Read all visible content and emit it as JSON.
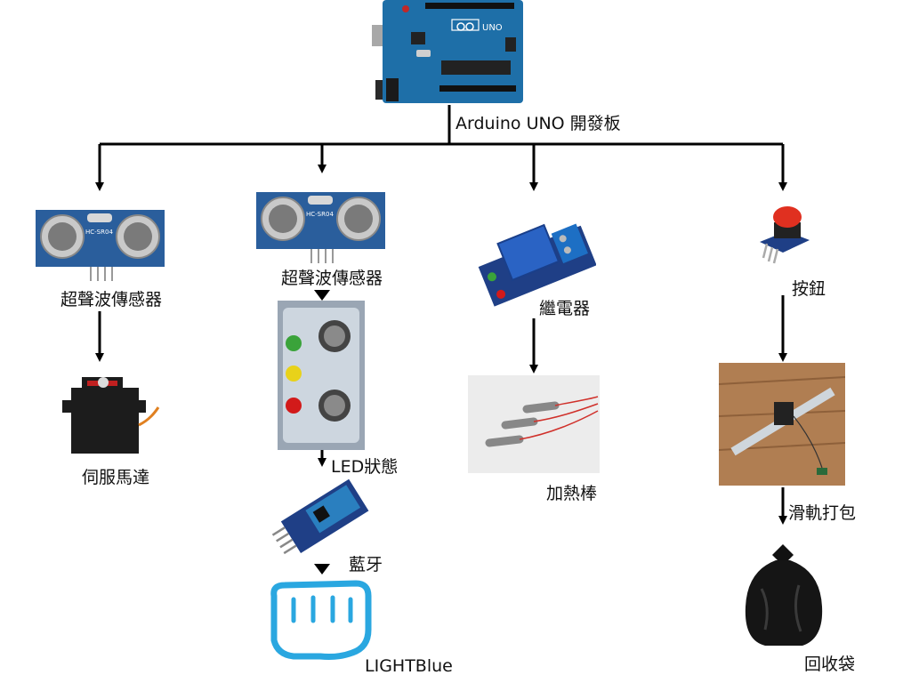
{
  "board": {
    "label": "Arduino UNO 開發板",
    "silk_text": "UNO"
  },
  "branches": [
    {
      "sensor": "超聲波傳感器",
      "sensor_silk": "HC-SR04",
      "output": "伺服馬達"
    },
    {
      "sensor": "超聲波傳感器",
      "sensor_silk": "HC-SR04",
      "step2": "LED狀態",
      "step3": "藍牙",
      "step4": "LIGHTBlue"
    },
    {
      "sensor": "繼電器",
      "output": "加熱棒"
    },
    {
      "sensor": "按鈕",
      "step2": "滑軌打包",
      "output": "回收袋"
    }
  ],
  "colors": {
    "wire": "#000000",
    "board_blue": "#1e6fa8",
    "sensor_blue": "#2a5e9c",
    "lightblue_logo": "#2aa7e0",
    "led_red": "#d21a1a",
    "led_yellow": "#e8d21a",
    "led_green": "#3aa33a",
    "button_red": "#e03020"
  },
  "icons": [
    "arduino-board-icon",
    "ultrasonic-sensor-icon",
    "servo-motor-icon",
    "led-panel-photo",
    "bluetooth-module-icon",
    "lightblue-fist-icon",
    "relay-module-icon",
    "heating-rod-photo",
    "push-button-icon",
    "slide-rail-photo",
    "garbage-bag-icon"
  ]
}
